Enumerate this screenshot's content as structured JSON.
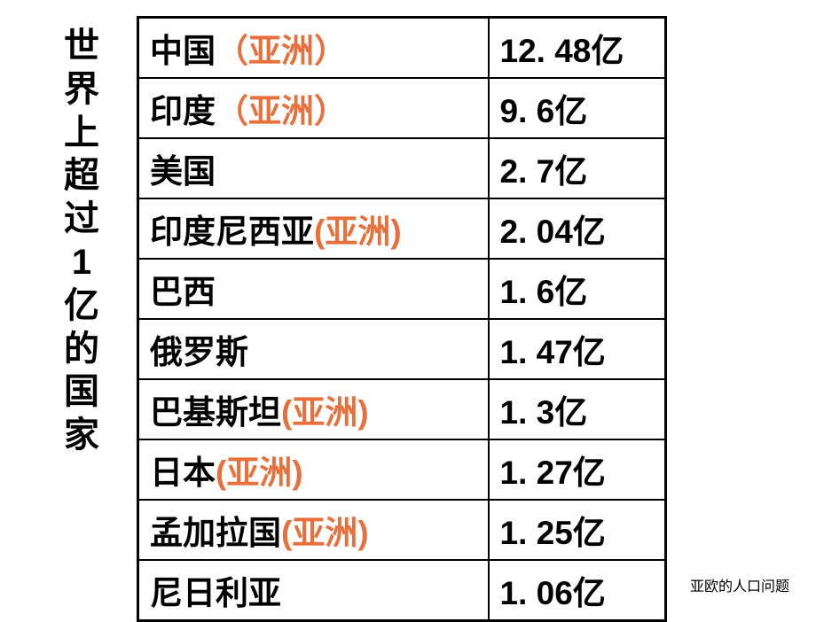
{
  "title_chars": [
    "世",
    "界",
    "上",
    "超",
    "过",
    "1",
    "亿",
    "的",
    "国",
    "家"
  ],
  "table": {
    "rows": [
      {
        "country": "中国",
        "continent": "（亚洲）",
        "value": "12. 48亿"
      },
      {
        "country": "印度",
        "continent": "（亚洲）",
        "value": "9. 6亿"
      },
      {
        "country": "美国",
        "continent": "",
        "value": "2. 7亿"
      },
      {
        "country": "印度尼西亚",
        "continent": "(亚洲)",
        "value": "2. 04亿"
      },
      {
        "country": "巴西",
        "continent": "",
        "value": "1. 6亿"
      },
      {
        "country": "俄罗斯",
        "continent": "",
        "value": "1. 47亿"
      },
      {
        "country": "巴基斯坦",
        "continent": "(亚洲)",
        "value": "1. 3亿"
      },
      {
        "country": "日本",
        "continent": "(亚洲)",
        "value": "1. 27亿"
      },
      {
        "country": "孟加拉国",
        "continent": "(亚洲)",
        "value": "1. 25亿"
      },
      {
        "country": "尼日利亚",
        "continent": "",
        "value": "1. 06亿"
      }
    ]
  },
  "footer": "亚欧的人口问题",
  "colors": {
    "text": "#000000",
    "continent_highlight": "#e8703d",
    "border": "#000000",
    "background": "#ffffff"
  },
  "typography": {
    "title_fontsize": 40,
    "cell_fontsize": 37,
    "footer_fontsize": 16,
    "font_family": "SimHei"
  }
}
